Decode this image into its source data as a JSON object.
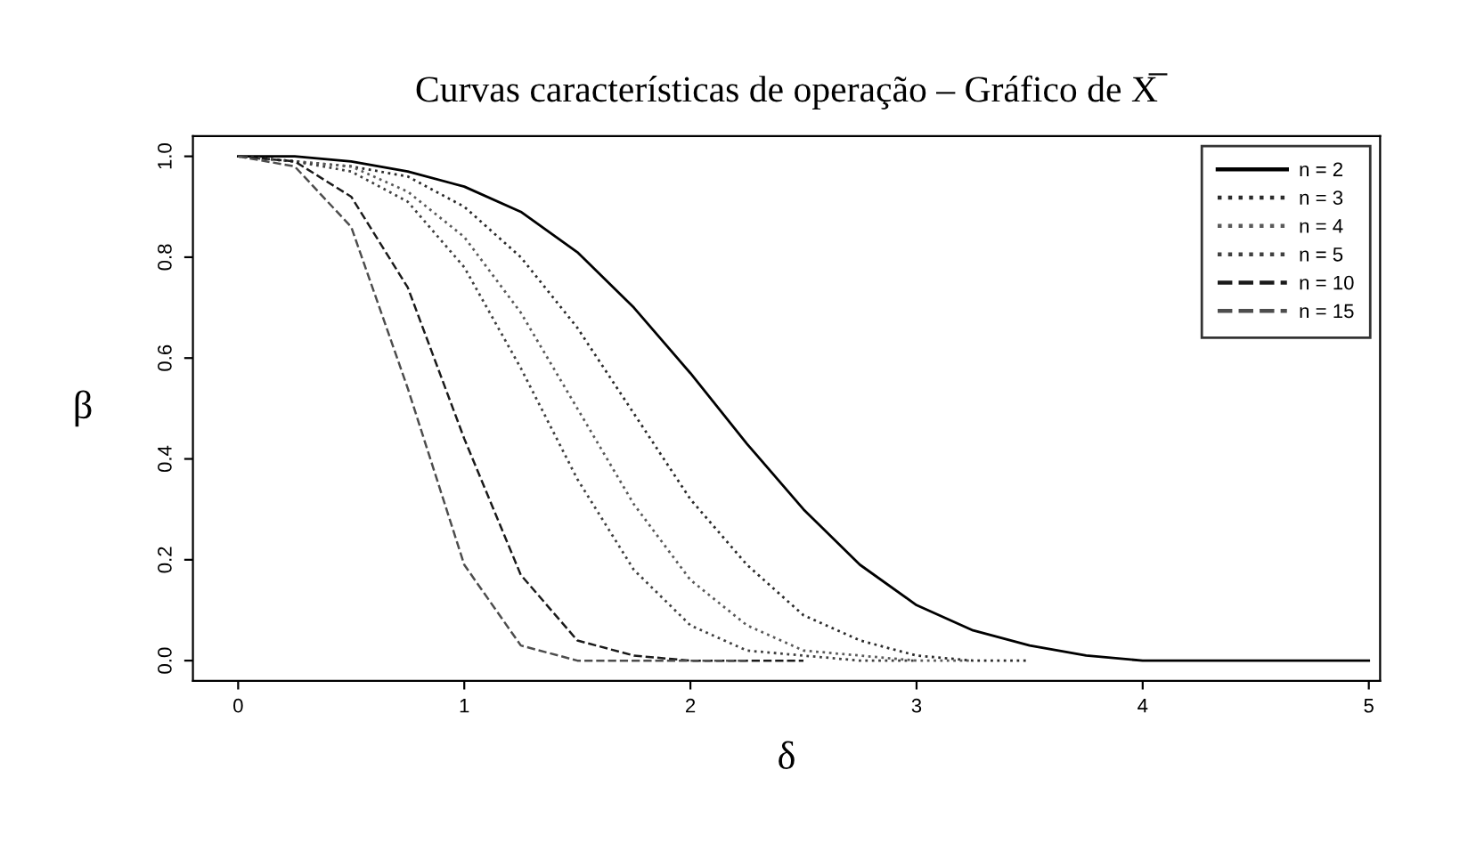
{
  "chart_data": {
    "type": "line",
    "title": "Curvas características de operação – Gráfico de X̅",
    "xlabel": "δ",
    "ylabel": "β",
    "x": [
      0,
      0.25,
      0.5,
      0.75,
      1,
      1.25,
      1.5,
      1.75,
      2,
      2.25,
      2.5,
      2.75,
      3,
      3.25,
      3.5,
      3.75,
      4,
      4.25,
      4.5,
      4.75,
      5
    ],
    "series": [
      {
        "name": "n = 2",
        "color": "#000000",
        "line_style": "solid",
        "values": [
          1.0,
          1.0,
          0.99,
          0.97,
          0.94,
          0.89,
          0.81,
          0.7,
          0.57,
          0.43,
          0.3,
          0.19,
          0.11,
          0.06,
          0.03,
          0.01,
          0.0,
          0.0,
          0.0,
          0.0,
          0.0
        ]
      },
      {
        "name": "n = 3",
        "color": "#2b2b2b",
        "line_style": "dotted",
        "values": [
          1.0,
          0.99,
          0.98,
          0.96,
          0.9,
          0.8,
          0.66,
          0.49,
          0.32,
          0.19,
          0.09,
          0.04,
          0.01,
          0.0,
          0.0,
          null,
          null,
          null,
          null,
          null,
          null
        ]
      },
      {
        "name": "n = 4",
        "color": "#5a5a5a",
        "line_style": "dotted",
        "values": [
          1.0,
          0.99,
          0.98,
          0.93,
          0.84,
          0.69,
          0.5,
          0.31,
          0.16,
          0.07,
          0.02,
          0.01,
          0.0,
          0.0,
          null,
          null,
          null,
          null,
          null,
          null,
          null
        ]
      },
      {
        "name": "n = 5",
        "color": "#404040",
        "line_style": "dotted",
        "values": [
          1.0,
          0.99,
          0.97,
          0.91,
          0.78,
          0.58,
          0.36,
          0.18,
          0.07,
          0.02,
          0.01,
          0.0,
          0.0,
          null,
          null,
          null,
          null,
          null,
          null,
          null,
          null
        ]
      },
      {
        "name": "n = 10",
        "color": "#1a1a1a",
        "line_style": "dashed",
        "values": [
          1.0,
          0.99,
          0.92,
          0.74,
          0.44,
          0.17,
          0.04,
          0.01,
          0.0,
          0.0,
          0.0,
          null,
          null,
          null,
          null,
          null,
          null,
          null,
          null,
          null,
          null
        ]
      },
      {
        "name": "n = 15",
        "color": "#4d4d4d",
        "line_style": "dashed",
        "values": [
          1.0,
          0.98,
          0.86,
          0.54,
          0.19,
          0.03,
          0.0,
          0.0,
          0.0,
          0.0,
          null,
          null,
          null,
          null,
          null,
          null,
          null,
          null,
          null,
          null,
          null
        ]
      }
    ],
    "xlim": [
      -0.2,
      5.05
    ],
    "ylim": [
      -0.04,
      1.04
    ],
    "xticks": [
      0,
      1,
      2,
      3,
      4,
      5
    ],
    "yticks": [
      {
        "value": 0,
        "label": "0.0"
      },
      {
        "value": 0.2,
        "label": "0.2"
      },
      {
        "value": 0.4,
        "label": "0.4"
      },
      {
        "value": 0.6,
        "label": "0.6"
      },
      {
        "value": 0.8,
        "label": "0.8"
      },
      {
        "value": 1,
        "label": "1.0"
      }
    ],
    "grid": false,
    "legend": "top right"
  }
}
